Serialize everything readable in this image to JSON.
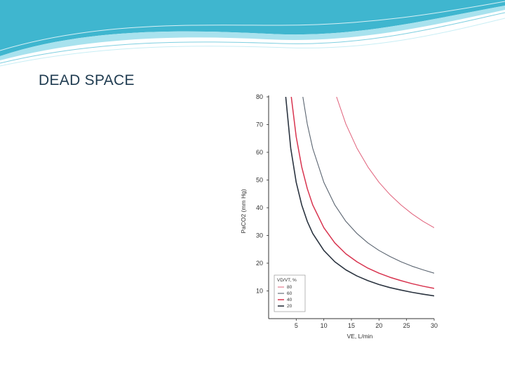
{
  "slide": {
    "title": "DEAD SPACE",
    "accent_colors": [
      "#3fb6cf",
      "#8fd9e8",
      "#c8eef5"
    ]
  },
  "chart_data": {
    "type": "line",
    "title": "",
    "xlabel": "VE, L/min",
    "ylabel": "PaCO2 (mm Hg)",
    "xlim": [
      0,
      30
    ],
    "ylim": [
      0,
      80
    ],
    "x_ticks": [
      5,
      10,
      15,
      20,
      25,
      30
    ],
    "y_ticks": [
      10,
      20,
      30,
      40,
      50,
      60,
      70,
      80
    ],
    "grid": false,
    "legend_title": "VD/VT, %",
    "legend_position": "bottom-left",
    "series": [
      {
        "name": "80",
        "color": "#e0607a",
        "width": 1.0,
        "x": [
          12.3,
          14,
          16,
          18,
          20,
          22,
          24,
          26,
          28,
          30
        ],
        "y": [
          80,
          70.2,
          61.5,
          54.7,
          49.2,
          44.7,
          41,
          37.8,
          35.1,
          32.8
        ]
      },
      {
        "name": "60",
        "color": "#5a6470",
        "width": 1.1,
        "x": [
          6.2,
          7,
          8,
          10,
          12,
          14,
          16,
          18,
          20,
          22,
          24,
          26,
          28,
          30
        ],
        "y": [
          80,
          70.2,
          61.4,
          49.2,
          41,
          35.1,
          30.7,
          27.3,
          24.6,
          22.4,
          20.5,
          18.9,
          17.6,
          16.4
        ]
      },
      {
        "name": "40",
        "color": "#d8344f",
        "width": 1.5,
        "x": [
          4.1,
          5,
          6,
          7,
          8,
          10,
          12,
          14,
          16,
          18,
          20,
          22,
          24,
          26,
          28,
          30
        ],
        "y": [
          80,
          65.6,
          54.7,
          46.9,
          41,
          32.8,
          27.3,
          23.4,
          20.5,
          18.2,
          16.4,
          14.9,
          13.7,
          12.6,
          11.7,
          10.9
        ]
      },
      {
        "name": "20",
        "color": "#2b3440",
        "width": 1.6,
        "x": [
          3.1,
          4,
          5,
          6,
          7,
          8,
          10,
          12,
          14,
          16,
          18,
          20,
          22,
          24,
          26,
          28,
          30
        ],
        "y": [
          80,
          61.5,
          49.2,
          41,
          35.1,
          30.7,
          24.6,
          20.5,
          17.6,
          15.4,
          13.7,
          12.3,
          11.2,
          10.3,
          9.5,
          8.8,
          8.2
        ]
      }
    ]
  }
}
